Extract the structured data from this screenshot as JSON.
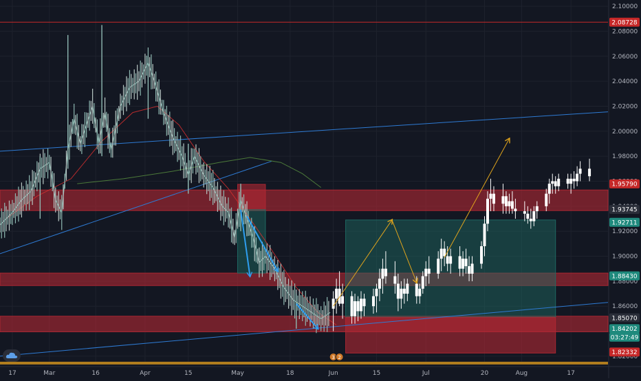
{
  "colors": {
    "background": "#131722",
    "grid": "#1e222d",
    "candle": "#ffffff",
    "candle_early": "#8fb9b2",
    "zone_red": "#b22833",
    "zone_green": "#1f6f67",
    "trend_blue": "#2e7bd4",
    "projection_orange": "#e0a41c",
    "price_line_red": "#c62828",
    "sma_red": "#d32f2f",
    "sma_green": "#4c7a3a",
    "bottom_bar": "#b07d1e"
  },
  "price_axis": {
    "labels": [
      "2.10000",
      "2.08000",
      "2.06000",
      "2.04000",
      "2.02000",
      "2.00000",
      "1.98000",
      "1.96000",
      "1.94000",
      "1.92000",
      "1.90000",
      "1.88000",
      "1.86000",
      "1.84000",
      "1.82000"
    ],
    "min": 1.815,
    "max": 2.105
  },
  "price_tags": [
    {
      "label": "2.08728",
      "value": 2.08728,
      "color": "#c62828",
      "text_color": "#ffffff"
    },
    {
      "label": "1.95790",
      "value": 1.9579,
      "color": "#c62828",
      "text_color": "#ffffff"
    },
    {
      "label": "1.93745",
      "value": 1.93745,
      "color": "#2a2e39",
      "text_color": "#ffffff"
    },
    {
      "label": "1.92711",
      "value": 1.92711,
      "color": "#1f8a7d",
      "text_color": "#ffffff"
    },
    {
      "label": "1.88430",
      "value": 1.8843,
      "color": "#1f8a7d",
      "text_color": "#ffffff"
    },
    {
      "label": "1.85070",
      "value": 1.8507,
      "color": "#2a2e39",
      "text_color": "#ffffff"
    },
    {
      "label": "1.84202",
      "value": 1.84202,
      "color": "#1f8a7d",
      "text_color": "#ffffff"
    },
    {
      "label": "03:27:49",
      "value": 1.8352,
      "color": "#1f8a7d",
      "text_color": "#ffffff"
    },
    {
      "label": "1.82332",
      "value": 1.82332,
      "color": "#c62828",
      "text_color": "#ffffff"
    }
  ],
  "time_axis": {
    "labels": [
      {
        "label": "17",
        "date": "2021-02-17"
      },
      {
        "label": "Mar",
        "date": "2021-03-01"
      },
      {
        "label": "16",
        "date": "2021-03-16"
      },
      {
        "label": "Apr",
        "date": "2021-04-01"
      },
      {
        "label": "15",
        "date": "2021-04-15"
      },
      {
        "label": "May",
        "date": "2021-05-01"
      },
      {
        "label": "18",
        "date": "2021-05-18"
      },
      {
        "label": "Jun",
        "date": "2021-06-01"
      },
      {
        "label": "15",
        "date": "2021-06-15"
      },
      {
        "label": "Jul",
        "date": "2021-07-01"
      },
      {
        "label": "20",
        "date": "2021-07-20"
      },
      {
        "label": "Aug",
        "date": "2021-08-01"
      },
      {
        "label": "17",
        "date": "2021-08-17"
      }
    ]
  },
  "chart_data": {
    "type": "candlestick",
    "grid": true,
    "ylim": [
      1.815,
      2.105
    ],
    "xlim": [
      "2021-02-13",
      "2021-08-29"
    ],
    "horizontal_lines": [
      {
        "value": 2.08728,
        "color": "#c62828"
      }
    ],
    "zones": [
      {
        "name": "resistance-zone-upper",
        "x1": "2021-02-13",
        "x2": "2021-08-29",
        "y1": 1.9365,
        "y2": 1.953,
        "color": "#b22833"
      },
      {
        "name": "resistance-zone-middle",
        "x1": "2021-02-13",
        "x2": "2021-08-29",
        "y1": 1.8765,
        "y2": 1.8865,
        "color": "#b22833"
      },
      {
        "name": "support-zone-lower",
        "x1": "2021-02-13",
        "x2": "2021-08-29",
        "y1": 1.8395,
        "y2": 1.852,
        "color": "#b22833"
      },
      {
        "name": "short-stop-zone",
        "x1": "2021-05-01",
        "x2": "2021-05-10",
        "y1": 1.9372,
        "y2": 1.9575,
        "color": "#b22833"
      },
      {
        "name": "short-target-zone",
        "x1": "2021-05-01",
        "x2": "2021-05-10",
        "y1": 1.8865,
        "y2": 1.9372,
        "color": "#1f6f67"
      },
      {
        "name": "long-target-zone",
        "x1": "2021-06-05",
        "x2": "2021-08-12",
        "y1": 1.851,
        "y2": 1.929,
        "color": "#1f6f67"
      },
      {
        "name": "long-stop-zone",
        "x1": "2021-06-05",
        "x2": "2021-08-12",
        "y1": 1.8225,
        "y2": 1.851,
        "color": "#b22833"
      }
    ],
    "trendlines": [
      {
        "name": "upper-channel-line",
        "x1": "2021-02-13",
        "y1": 1.984,
        "x2": "2021-08-29",
        "y2": 2.0155,
        "color": "#2e7bd4"
      },
      {
        "name": "lower-channel-line",
        "x1": "2021-02-13",
        "y1": 1.82,
        "x2": "2021-08-29",
        "y2": 1.863,
        "color": "#2e7bd4"
      },
      {
        "name": "rising-trendline",
        "x1": "2021-02-13",
        "y1": 1.902,
        "x2": "2021-05-12",
        "y2": 1.976,
        "color": "#2e7bd4"
      }
    ],
    "arrows": [
      {
        "name": "drop-arrow-1",
        "x1": "2021-05-02",
        "y1": 1.937,
        "x2": "2021-05-05",
        "y2": 1.884,
        "color": "#2e9ef0"
      },
      {
        "name": "drop-arrow-2",
        "x1": "2021-05-04",
        "y1": 1.932,
        "x2": "2021-05-14",
        "y2": 1.888,
        "color": "#2e9ef0"
      },
      {
        "name": "drop-arrow-3",
        "x1": "2021-05-20",
        "y1": 1.862,
        "x2": "2021-05-27",
        "y2": 1.842,
        "color": "#2e9ef0"
      },
      {
        "name": "projection-up-1",
        "x1": "2021-06-01",
        "y1": 1.86,
        "x2": "2021-06-20",
        "y2": 1.929,
        "color": "#e0a41c"
      },
      {
        "name": "projection-down",
        "x1": "2021-06-20",
        "y1": 1.929,
        "x2": "2021-06-28",
        "y2": 1.879,
        "color": "#e0a41c"
      },
      {
        "name": "projection-up-2",
        "x1": "2021-07-07",
        "y1": 1.899,
        "x2": "2021-07-28",
        "y2": 1.994,
        "color": "#e0a41c"
      }
    ],
    "sma_red": [
      [
        "2021-02-15",
        1.93
      ],
      [
        "2021-02-25",
        1.948
      ],
      [
        "2021-03-08",
        1.962
      ],
      [
        "2021-03-18",
        1.992
      ],
      [
        "2021-03-28",
        2.015
      ],
      [
        "2021-04-05",
        2.02
      ],
      [
        "2021-04-12",
        2.005
      ],
      [
        "2021-04-20",
        1.976
      ],
      [
        "2021-04-28",
        1.954
      ],
      [
        "2021-05-05",
        1.93
      ],
      [
        "2021-05-12",
        1.905
      ],
      [
        "2021-05-20",
        1.875
      ],
      [
        "2021-05-27",
        1.855
      ],
      [
        "2021-06-02",
        1.845
      ]
    ],
    "sma_green": [
      [
        "2021-03-10",
        1.958
      ],
      [
        "2021-03-25",
        1.962
      ],
      [
        "2021-04-10",
        1.968
      ],
      [
        "2021-04-25",
        1.975
      ],
      [
        "2021-05-05",
        1.979
      ],
      [
        "2021-05-15",
        1.975
      ],
      [
        "2021-05-22",
        1.966
      ],
      [
        "2021-05-28",
        1.955
      ]
    ],
    "price_series": [
      [
        "2021-02-13",
        1.925
      ],
      [
        "2021-02-17",
        1.935
      ],
      [
        "2021-02-20",
        1.945
      ],
      [
        "2021-02-23",
        1.952
      ],
      [
        "2021-02-26",
        1.97
      ],
      [
        "2021-03-01",
        1.975
      ],
      [
        "2021-03-03",
        1.945
      ],
      [
        "2021-03-05",
        1.935
      ],
      [
        "2021-03-07",
        1.985
      ],
      [
        "2021-03-09",
        2.01
      ],
      [
        "2021-03-11",
        1.99
      ],
      [
        "2021-03-13",
        2.005
      ],
      [
        "2021-03-15",
        2.02
      ],
      [
        "2021-03-17",
        1.99
      ],
      [
        "2021-03-19",
        2.015
      ],
      [
        "2021-03-21",
        1.985
      ],
      [
        "2021-03-24",
        2.02
      ],
      [
        "2021-03-27",
        2.035
      ],
      [
        "2021-03-30",
        2.04
      ],
      [
        "2021-04-02",
        2.055
      ],
      [
        "2021-04-04",
        2.04
      ],
      [
        "2021-04-07",
        2.015
      ],
      [
        "2021-04-10",
        1.995
      ],
      [
        "2021-04-13",
        1.98
      ],
      [
        "2021-04-15",
        1.965
      ],
      [
        "2021-04-17",
        1.98
      ],
      [
        "2021-04-20",
        1.965
      ],
      [
        "2021-04-23",
        1.955
      ],
      [
        "2021-04-26",
        1.94
      ],
      [
        "2021-04-28",
        1.935
      ],
      [
        "2021-04-30",
        1.915
      ],
      [
        "2021-05-02",
        1.945
      ],
      [
        "2021-05-04",
        1.93
      ],
      [
        "2021-05-06",
        1.915
      ],
      [
        "2021-05-08",
        1.895
      ],
      [
        "2021-05-10",
        1.9
      ],
      [
        "2021-05-13",
        1.89
      ],
      [
        "2021-05-16",
        1.875
      ],
      [
        "2021-05-19",
        1.865
      ],
      [
        "2021-05-22",
        1.86
      ],
      [
        "2021-05-25",
        1.855
      ],
      [
        "2021-05-28",
        1.85
      ],
      [
        "2021-05-31",
        1.855
      ]
    ],
    "price_spikes": [
      {
        "date": "2021-03-07",
        "high": 2.077,
        "low": 1.97
      },
      {
        "date": "2021-03-18",
        "high": 2.085,
        "low": 1.98
      },
      {
        "date": "2021-04-02",
        "high": 2.06,
        "low": 2.01
      },
      {
        "date": "2021-02-26",
        "high": 1.98,
        "low": 1.93
      },
      {
        "date": "2021-04-15",
        "high": 1.99,
        "low": 1.95
      },
      {
        "date": "2021-05-02",
        "high": 1.958,
        "low": 1.92
      },
      {
        "date": "2021-05-20",
        "high": 1.87,
        "low": 1.842
      }
    ],
    "ohlc_bars": [
      [
        "2021-06-01",
        1.858,
        1.872,
        1.84,
        1.866
      ],
      [
        "2021-06-02",
        1.866,
        1.882,
        1.854,
        1.874
      ],
      [
        "2021-06-03",
        1.874,
        1.888,
        1.86,
        1.862
      ],
      [
        "2021-06-04",
        1.862,
        1.878,
        1.85,
        1.868
      ],
      [
        "2021-06-07",
        1.868,
        1.872,
        1.846,
        1.852
      ],
      [
        "2021-06-08",
        1.852,
        1.87,
        1.846,
        1.864
      ],
      [
        "2021-06-09",
        1.864,
        1.868,
        1.848,
        1.856
      ],
      [
        "2021-06-10",
        1.856,
        1.872,
        1.85,
        1.866
      ],
      [
        "2021-06-11",
        1.866,
        1.87,
        1.852,
        1.86
      ],
      [
        "2021-06-14",
        1.86,
        1.874,
        1.854,
        1.868
      ],
      [
        "2021-06-15",
        1.868,
        1.878,
        1.855,
        1.874
      ],
      [
        "2021-06-16",
        1.874,
        1.89,
        1.864,
        1.882
      ],
      [
        "2021-06-17",
        1.882,
        1.898,
        1.87,
        1.89
      ],
      [
        "2021-06-18",
        1.89,
        1.904,
        1.878,
        1.884
      ],
      [
        "2021-06-21",
        1.884,
        1.896,
        1.87,
        1.878
      ],
      [
        "2021-06-22",
        1.878,
        1.886,
        1.856,
        1.866
      ],
      [
        "2021-06-23",
        1.866,
        1.88,
        1.858,
        1.874
      ],
      [
        "2021-06-24",
        1.874,
        1.882,
        1.862,
        1.87
      ],
      [
        "2021-06-25",
        1.87,
        1.882,
        1.864,
        1.878
      ],
      [
        "2021-06-28",
        1.878,
        1.884,
        1.862,
        1.868
      ],
      [
        "2021-06-29",
        1.868,
        1.878,
        1.862,
        1.874
      ],
      [
        "2021-06-30",
        1.874,
        1.888,
        1.87,
        1.884
      ],
      [
        "2021-07-01",
        1.884,
        1.896,
        1.876,
        1.89
      ],
      [
        "2021-07-02",
        1.89,
        1.9,
        1.878,
        1.886
      ],
      [
        "2021-07-05",
        1.886,
        1.904,
        1.882,
        1.898
      ],
      [
        "2021-07-06",
        1.898,
        1.914,
        1.888,
        1.906
      ],
      [
        "2021-07-07",
        1.906,
        1.912,
        1.892,
        1.9
      ],
      [
        "2021-07-08",
        1.9,
        1.908,
        1.888,
        1.894
      ],
      [
        "2021-07-09",
        1.894,
        1.906,
        1.886,
        1.9
      ],
      [
        "2021-07-12",
        1.9,
        1.908,
        1.884,
        1.89
      ],
      [
        "2021-07-13",
        1.89,
        1.904,
        1.884,
        1.898
      ],
      [
        "2021-07-14",
        1.898,
        1.906,
        1.886,
        1.892
      ],
      [
        "2021-07-15",
        1.892,
        1.9,
        1.88,
        1.886
      ],
      [
        "2021-07-16",
        1.886,
        1.9,
        1.88,
        1.894
      ],
      [
        "2021-07-19",
        1.894,
        1.912,
        1.89,
        1.908
      ],
      [
        "2021-07-20",
        1.908,
        1.932,
        1.9,
        1.926
      ],
      [
        "2021-07-21",
        1.926,
        1.952,
        1.92,
        1.946
      ],
      [
        "2021-07-22",
        1.946,
        1.962,
        1.936,
        1.95
      ],
      [
        "2021-07-23",
        1.95,
        1.956,
        1.936,
        1.942
      ],
      [
        "2021-07-26",
        1.942,
        1.958,
        1.934,
        1.948
      ],
      [
        "2021-07-27",
        1.948,
        1.952,
        1.934,
        1.94
      ],
      [
        "2021-07-28",
        1.94,
        1.95,
        1.934,
        1.944
      ],
      [
        "2021-07-29",
        1.944,
        1.952,
        1.934,
        1.938
      ],
      [
        "2021-07-30",
        1.938,
        1.946,
        1.93,
        1.936
      ],
      [
        "2021-08-02",
        1.936,
        1.944,
        1.928,
        1.934
      ],
      [
        "2021-08-03",
        1.934,
        1.94,
        1.926,
        1.93
      ],
      [
        "2021-08-04",
        1.93,
        1.938,
        1.922,
        1.928
      ],
      [
        "2021-08-05",
        1.928,
        1.94,
        1.924,
        1.936
      ],
      [
        "2021-08-06",
        1.936,
        1.944,
        1.93,
        1.94
      ],
      [
        "2021-08-09",
        1.94,
        1.954,
        1.936,
        1.95
      ],
      [
        "2021-08-10",
        1.95,
        1.962,
        1.942,
        1.958
      ],
      [
        "2021-08-11",
        1.958,
        1.966,
        1.95,
        1.96
      ],
      [
        "2021-08-12",
        1.96,
        1.964,
        1.95,
        1.956
      ],
      [
        "2021-08-13",
        1.956,
        1.966,
        1.952,
        1.962
      ],
      [
        "2021-08-16",
        1.962,
        1.966,
        1.954,
        1.958
      ],
      [
        "2021-08-17",
        1.958,
        1.966,
        1.95,
        1.962
      ],
      [
        "2021-08-18",
        1.962,
        1.968,
        1.954,
        1.96
      ],
      [
        "2021-08-19",
        1.96,
        1.972,
        1.956,
        1.966
      ],
      [
        "2021-08-20",
        1.966,
        1.976,
        1.96,
        1.97
      ],
      [
        "2021-08-23",
        1.97,
        1.978,
        1.96,
        1.964
      ]
    ],
    "event_markers": [
      {
        "date": "2021-06-01",
        "label": "3"
      },
      {
        "date": "2021-06-03",
        "label": "2"
      }
    ]
  }
}
